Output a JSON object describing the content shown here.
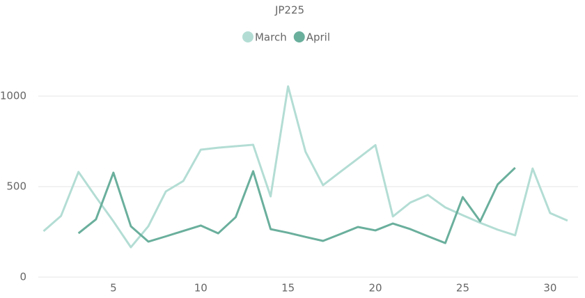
{
  "chart_data": {
    "type": "line",
    "title": "JP225",
    "x": [
      1,
      2,
      3,
      4,
      5,
      6,
      7,
      8,
      9,
      10,
      11,
      12,
      13,
      14,
      15,
      16,
      17,
      18,
      19,
      20,
      21,
      22,
      23,
      24,
      25,
      26,
      27,
      28,
      29,
      30,
      31
    ],
    "series": [
      {
        "name": "March",
        "color": "#b3ddd4",
        "values": [
          254,
          338,
          581,
          442,
          308,
          165,
          281,
          473,
          531,
          704,
          715,
          723,
          731,
          446,
          1054,
          692,
          508,
          582,
          655,
          729,
          335,
          412,
          454,
          385,
          342,
          300,
          262,
          231,
          600,
          354,
          312
        ]
      },
      {
        "name": "April",
        "color": "#6aaf9c",
        "values": [
          null,
          null,
          242,
          319,
          577,
          281,
          196,
          225,
          255,
          285,
          242,
          331,
          585,
          265,
          245,
          222,
          200,
          238,
          277,
          258,
          296,
          265,
          226,
          188,
          442,
          308,
          512,
          604,
          null,
          null,
          null
        ]
      }
    ],
    "xlim": [
      0.7,
      31.6
    ],
    "xticks": [
      5,
      10,
      15,
      20,
      25,
      30
    ],
    "ylim": [
      0,
      1150
    ],
    "yticks": [
      0,
      500,
      1000
    ],
    "grid": true,
    "legend": "top"
  }
}
